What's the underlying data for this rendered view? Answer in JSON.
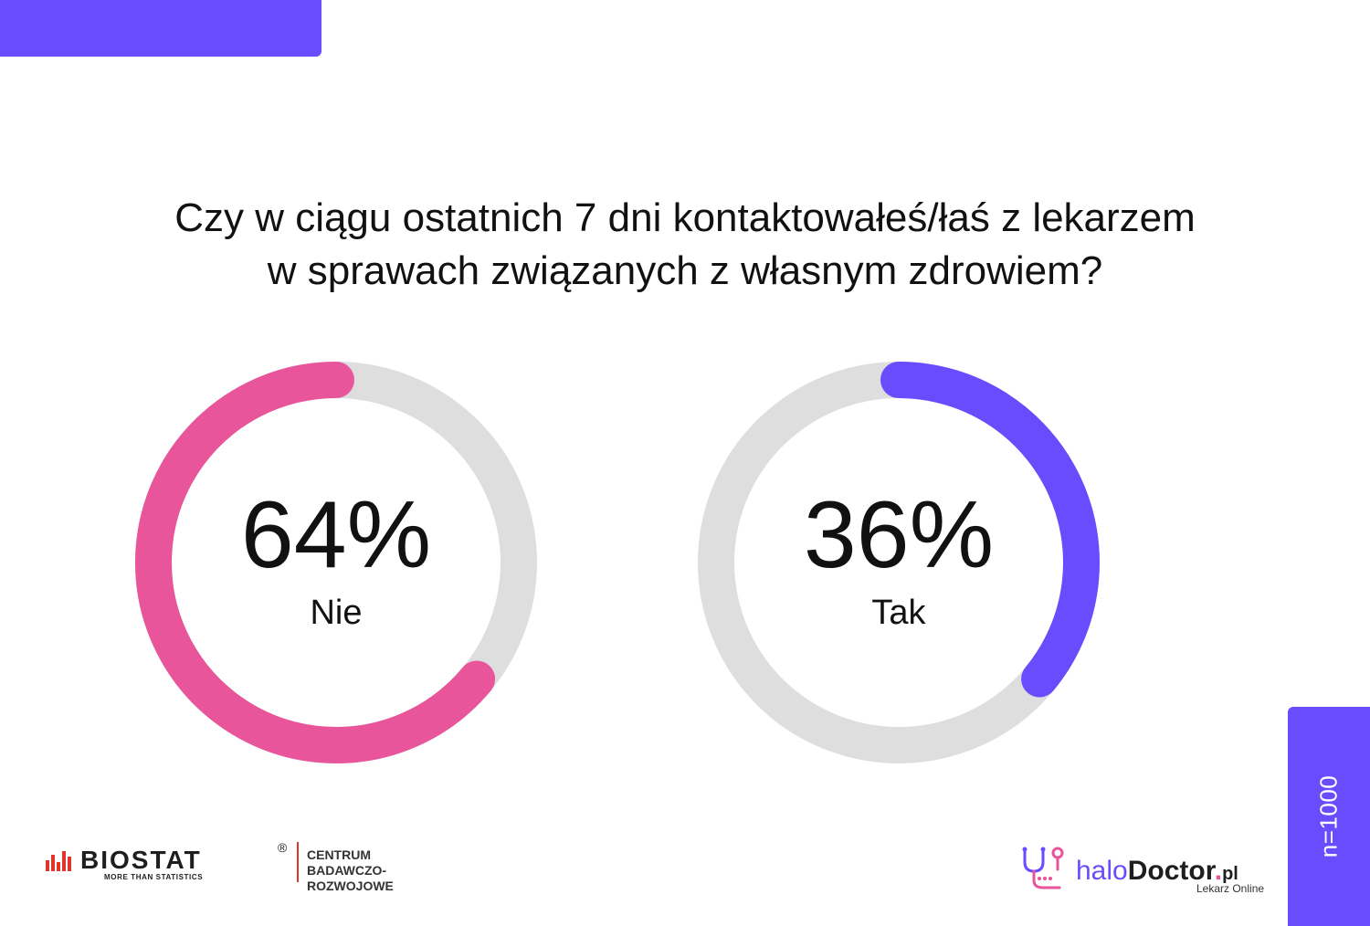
{
  "question": {
    "line1": "Czy w ciągu ostatnich 7 dni kontaktowałeś/łaś z lekarzem",
    "line2": "w sprawach związanych z własnym zdrowiem?"
  },
  "chart_data": [
    {
      "type": "pie",
      "style": "donut",
      "label": "Nie",
      "value": 64,
      "display": "64%",
      "color": "#e8559a",
      "track_color": "#dedede"
    },
    {
      "type": "pie",
      "style": "donut",
      "label": "Tak",
      "value": 36,
      "display": "36%",
      "color": "#6a4cff",
      "track_color": "#dedede"
    }
  ],
  "sample": "n=1000",
  "logos": {
    "biostat": {
      "name": "BIOSTAT",
      "registered": "®",
      "tagline": "MORE THAN STATISTICS",
      "center_line1": "CENTRUM",
      "center_line2": "BADAWCZO-ROZWOJOWE",
      "icon": "bars-icon",
      "accent": "#e0352b"
    },
    "halodoctor": {
      "prefix": "halo",
      "main": "Doctor",
      "dot": ".",
      "suffix": "pl",
      "subtitle": "Lekarz Online",
      "icon": "stethoscope-icon"
    }
  },
  "colors": {
    "accent": "#6a4cff",
    "pink": "#e8559a"
  }
}
